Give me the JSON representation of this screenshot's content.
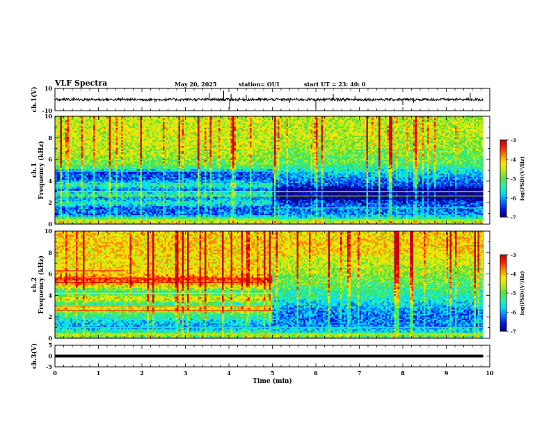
{
  "header": {
    "title": "VLF Spectra",
    "date": "May 20, 2025",
    "station": "station= OUI",
    "start": "start  UT  =  23: 40: 0"
  },
  "colors": {
    "spectrum": [
      "#0a0080",
      "#0016d8",
      "#0072ff",
      "#00d8ff",
      "#29f0a8",
      "#55e040",
      "#b8ea18",
      "#ffe400",
      "#ff8800",
      "#ff1c00",
      "#c80000"
    ],
    "trace": "#000000",
    "axes": "#000000"
  },
  "chart_data": [
    {
      "type": "line",
      "name": "ch.1 waveform",
      "ylabel": "ch.1(V)",
      "ylim": [
        -10,
        10
      ],
      "yticks": [
        "10",
        "-10"
      ],
      "xlim": [
        0,
        10
      ],
      "duration_min": 9.85,
      "baseline_v": 0,
      "noise_amplitude_v": 1.2,
      "spikes": [
        {
          "t": 0.42,
          "v": 2.0
        },
        {
          "t": 1.55,
          "v": 2.5
        },
        {
          "t": 2.3,
          "v": -2.5
        },
        {
          "t": 3.55,
          "v": 5.5
        },
        {
          "t": 3.88,
          "v": 8.0
        },
        {
          "t": 4.02,
          "v": -8.5
        },
        {
          "t": 4.05,
          "v": 5.0
        },
        {
          "t": 4.4,
          "v": 4.0
        },
        {
          "t": 5.4,
          "v": -3.0
        },
        {
          "t": 6.0,
          "v": -8.0
        },
        {
          "t": 6.4,
          "v": 5.0
        },
        {
          "t": 6.9,
          "v": 3.0
        },
        {
          "t": 8.0,
          "v": -5.0
        },
        {
          "t": 8.25,
          "v": -3.0
        },
        {
          "t": 9.55,
          "v": 6.0
        }
      ]
    },
    {
      "type": "heatmap",
      "name": "ch.1 spectrogram",
      "ylabel_top": "ch.1",
      "ylabel": "Frequency (kHz)",
      "ylim": [
        0,
        10
      ],
      "yticks": [
        "0",
        "2",
        "4",
        "6",
        "8",
        "10"
      ],
      "xlim": [
        0,
        10
      ],
      "duration_min": 9.85,
      "colorbar": {
        "label": "log(PSD)(V²/Hz)",
        "range": [
          -7,
          -3
        ],
        "ticks": [
          "-3",
          "-4",
          "-5",
          "-6",
          "-7"
        ]
      },
      "regimes": [
        {
          "t": [
            0,
            5.0
          ],
          "profile": [
            [
              0.0,
              -5.8
            ],
            [
              0.2,
              -4.4
            ],
            [
              0.5,
              -5.0
            ],
            [
              0.9,
              -6.1
            ],
            [
              1.5,
              -6.2
            ],
            [
              2.0,
              -5.4
            ],
            [
              2.4,
              -6.0
            ],
            [
              2.8,
              -5.4
            ],
            [
              3.2,
              -6.1
            ],
            [
              3.6,
              -5.3
            ],
            [
              4.2,
              -6.2
            ],
            [
              4.9,
              -6.3
            ],
            [
              5.1,
              -5.4
            ],
            [
              5.6,
              -4.9
            ],
            [
              7.0,
              -4.6
            ],
            [
              8.5,
              -4.5
            ],
            [
              10.0,
              -4.6
            ]
          ]
        },
        {
          "t": [
            5.0,
            9.85
          ],
          "profile": [
            [
              0.0,
              -5.8
            ],
            [
              0.2,
              -4.4
            ],
            [
              0.5,
              -5.3
            ],
            [
              0.9,
              -6.0
            ],
            [
              1.5,
              -6.1
            ],
            [
              2.0,
              -6.3
            ],
            [
              2.4,
              -6.8
            ],
            [
              3.2,
              -6.9
            ],
            [
              3.6,
              -6.3
            ],
            [
              4.6,
              -5.8
            ],
            [
              5.6,
              -5.1
            ],
            [
              7.0,
              -4.8
            ],
            [
              8.5,
              -4.6
            ],
            [
              10.0,
              -4.7
            ]
          ]
        }
      ],
      "lines_khz": [
        {
          "f": 2.6,
          "t": [
            0,
            9.85
          ],
          "v": -4.6
        },
        {
          "f": 3.0,
          "t": [
            0,
            9.85
          ],
          "v": -4.6
        },
        {
          "f": 1.5,
          "t": [
            5.0,
            9.85
          ],
          "v": -5.4
        },
        {
          "f": 0.4,
          "t": [
            0,
            9.85
          ],
          "v": -4.6
        },
        {
          "f": 4.9,
          "t": [
            0,
            5.0
          ],
          "v": -5.2
        },
        {
          "f": 5.4,
          "t": [
            0,
            5.0
          ],
          "v": -5.1
        }
      ]
    },
    {
      "type": "heatmap",
      "name": "ch.2 spectrogram",
      "ylabel_top": "ch.2",
      "ylabel": "Frequency (kHz)",
      "ylim": [
        0,
        10
      ],
      "yticks": [
        "0",
        "2",
        "4",
        "6",
        "8",
        "10"
      ],
      "xlim": [
        0,
        10
      ],
      "duration_min": 9.85,
      "colorbar": {
        "label": "log(PSD)(V²/Hz)",
        "range": [
          -7,
          -3
        ],
        "ticks": [
          "-3",
          "-4",
          "-5",
          "-6",
          "-7"
        ]
      },
      "regimes": [
        {
          "t": [
            0,
            5.0
          ],
          "profile": [
            [
              0.0,
              -5.6
            ],
            [
              0.3,
              -4.6
            ],
            [
              0.6,
              -5.3
            ],
            [
              1.0,
              -5.9
            ],
            [
              1.6,
              -5.7
            ],
            [
              2.2,
              -5.2
            ],
            [
              2.8,
              -4.4
            ],
            [
              3.2,
              -5.3
            ],
            [
              3.7,
              -4.3
            ],
            [
              4.3,
              -5.4
            ],
            [
              5.0,
              -4.1
            ],
            [
              5.5,
              -3.6
            ],
            [
              6.0,
              -4.2
            ],
            [
              7.0,
              -4.4
            ],
            [
              8.5,
              -4.2
            ],
            [
              10.0,
              -4.3
            ]
          ]
        },
        {
          "t": [
            5.0,
            9.85
          ],
          "profile": [
            [
              0.0,
              -5.6
            ],
            [
              0.3,
              -4.7
            ],
            [
              0.6,
              -5.6
            ],
            [
              1.2,
              -6.0
            ],
            [
              2.0,
              -6.1
            ],
            [
              2.8,
              -5.9
            ],
            [
              3.6,
              -5.5
            ],
            [
              4.4,
              -5.3
            ],
            [
              5.2,
              -5.0
            ],
            [
              6.0,
              -4.8
            ],
            [
              7.0,
              -4.6
            ],
            [
              8.5,
              -4.2
            ],
            [
              10.0,
              -4.3
            ]
          ]
        }
      ],
      "lines_khz": [
        {
          "f": 2.6,
          "t": [
            0,
            5.0
          ],
          "v": -3.6
        },
        {
          "f": 3.0,
          "t": [
            0,
            5.0
          ],
          "v": -3.9
        },
        {
          "f": 5.2,
          "t": [
            0,
            5.0
          ],
          "v": -3.3
        },
        {
          "f": 5.6,
          "t": [
            0,
            5.0
          ],
          "v": -3.5
        },
        {
          "f": 4.2,
          "t": [
            0,
            5.0
          ],
          "v": -4.2
        },
        {
          "f": 6.3,
          "t": [
            0,
            1.6
          ],
          "v": -3.7
        },
        {
          "f": 1.0,
          "t": [
            0,
            9.85
          ],
          "v": -5.0
        },
        {
          "f": 0.4,
          "t": [
            0,
            9.85
          ],
          "v": -4.6
        }
      ]
    },
    {
      "type": "line",
      "name": "ch.3 waveform",
      "ylabel": "ch.3(V)",
      "ylim": [
        -5,
        5
      ],
      "yticks": [
        "5",
        "0",
        "-5"
      ],
      "xlim": [
        0,
        10
      ],
      "duration_min": 9.85,
      "baseline_v": 0
    }
  ],
  "xaxis": {
    "label": "Time (min)",
    "ticks": [
      "0",
      "1",
      "2",
      "3",
      "4",
      "5",
      "6",
      "7",
      "8",
      "9",
      "10"
    ],
    "range": [
      0,
      10
    ]
  }
}
